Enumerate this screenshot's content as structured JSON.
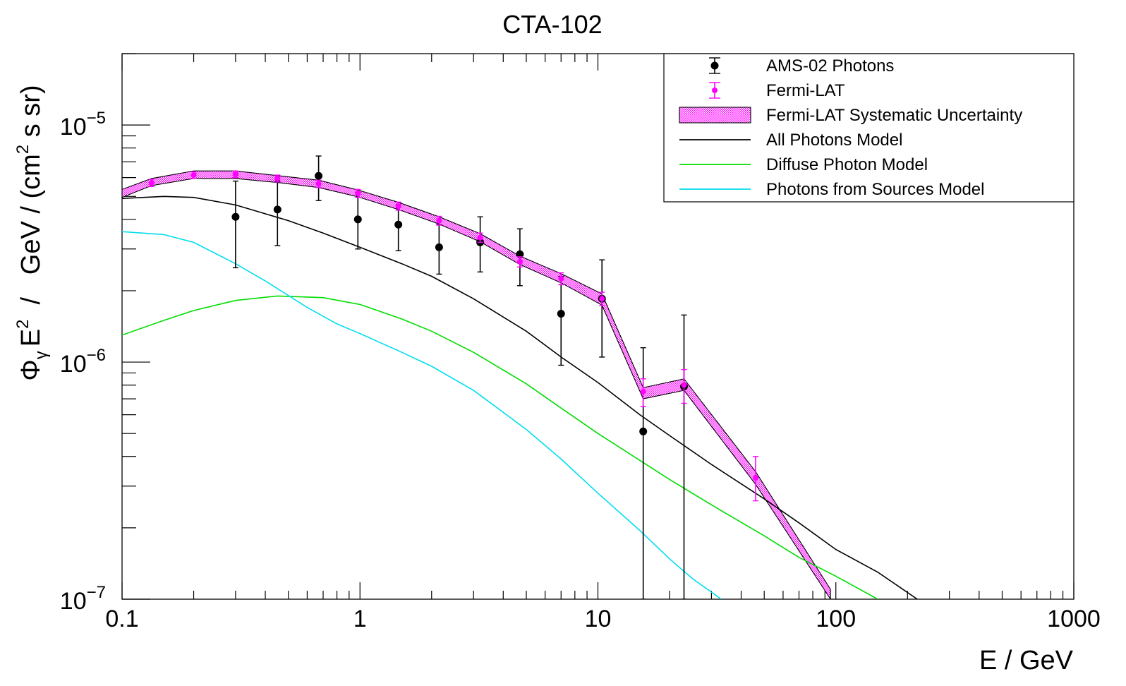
{
  "chart_data": {
    "type": "scatter",
    "title": "CTA-102",
    "xlabel": "E / GeV",
    "ylabel_parts": {
      "phi": "Φ",
      "phi_sub": "γ",
      "e": "E",
      "e_sup": "2",
      "mid": "  /   GeV / (cm",
      "mid_sup": "2",
      "end": " s sr)"
    },
    "x_scale": "log",
    "y_scale": "log",
    "xlim": [
      0.1,
      1000
    ],
    "ylim": [
      1e-07,
      2e-05
    ],
    "x_ticks": [
      {
        "value": 0.1,
        "label": "0.1"
      },
      {
        "value": 1,
        "label": "1"
      },
      {
        "value": 10,
        "label": "10"
      },
      {
        "value": 100,
        "label": "100"
      },
      {
        "value": 1000,
        "label": "1000"
      }
    ],
    "y_ticks": [
      {
        "value": 1e-07,
        "base": "10",
        "exp": "−7"
      },
      {
        "value": 1e-06,
        "base": "10",
        "exp": "−6"
      },
      {
        "value": 1e-05,
        "base": "10",
        "exp": "−5"
      }
    ],
    "legend_position": "top-right",
    "legend": [
      {
        "label": "AMS-02 Photons",
        "kind": "marker",
        "color": "#000000"
      },
      {
        "label": "Fermi-LAT",
        "kind": "marker",
        "color": "#ff00ff"
      },
      {
        "label": "Fermi-LAT Systematic Uncertainty",
        "kind": "band",
        "color": "#ff00ff"
      },
      {
        "label": "All Photons Model",
        "kind": "line",
        "color": "#000000"
      },
      {
        "label": "Diffuse Photon Model",
        "kind": "line",
        "color": "#00dd00"
      },
      {
        "label": "Photons from Sources Model",
        "kind": "line",
        "color": "#00ddee"
      }
    ],
    "series": [
      {
        "name": "AMS-02 Photons",
        "kind": "errorbar",
        "color": "#000000",
        "points": [
          {
            "x": 0.3,
            "y": 4.1e-06,
            "lo": 2.5e-06,
            "hi": 5.8e-06
          },
          {
            "x": 0.45,
            "y": 4.4e-06,
            "lo": 3.1e-06,
            "hi": 5.8e-06
          },
          {
            "x": 0.67,
            "y": 6.1e-06,
            "lo": 4.8e-06,
            "hi": 7.4e-06
          },
          {
            "x": 0.98,
            "y": 4e-06,
            "lo": 3e-06,
            "hi": 5.2e-06
          },
          {
            "x": 1.45,
            "y": 3.8e-06,
            "lo": 2.95e-06,
            "hi": 4.6e-06
          },
          {
            "x": 2.15,
            "y": 3.05e-06,
            "lo": 2.35e-06,
            "hi": 3.8e-06
          },
          {
            "x": 3.2,
            "y": 3.2e-06,
            "lo": 2.4e-06,
            "hi": 4.1e-06
          },
          {
            "x": 4.7,
            "y": 2.85e-06,
            "lo": 2.1e-06,
            "hi": 3.65e-06
          },
          {
            "x": 7.0,
            "y": 1.6e-06,
            "lo": 9.7e-07,
            "hi": 2.3e-06
          },
          {
            "x": 10.4,
            "y": 1.85e-06,
            "lo": 1.05e-06,
            "hi": 2.7e-06
          },
          {
            "x": 15.5,
            "y": 5.1e-07,
            "lo": 1e-07,
            "hi": 1.15e-06
          },
          {
            "x": 23.0,
            "y": 7.9e-07,
            "lo": 1e-07,
            "hi": 1.58e-06
          }
        ]
      },
      {
        "name": "Fermi-LAT",
        "kind": "errorbar",
        "color": "#ff00ff",
        "points": [
          {
            "x": 0.133,
            "y": 5.7e-06,
            "lo": 5.5e-06,
            "hi": 5.9e-06
          },
          {
            "x": 0.2,
            "y": 6.15e-06,
            "lo": 5.95e-06,
            "hi": 6.35e-06
          },
          {
            "x": 0.3,
            "y": 6.2e-06,
            "lo": 6e-06,
            "hi": 6.4e-06
          },
          {
            "x": 0.45,
            "y": 5.95e-06,
            "lo": 5.75e-06,
            "hi": 6.15e-06
          },
          {
            "x": 0.67,
            "y": 5.65e-06,
            "lo": 5.45e-06,
            "hi": 5.85e-06
          },
          {
            "x": 0.98,
            "y": 5.15e-06,
            "lo": 4.95e-06,
            "hi": 5.35e-06
          },
          {
            "x": 1.45,
            "y": 4.55e-06,
            "lo": 4.37e-06,
            "hi": 4.73e-06
          },
          {
            "x": 2.15,
            "y": 3.95e-06,
            "lo": 3.78e-06,
            "hi": 4.12e-06
          },
          {
            "x": 3.2,
            "y": 3.35e-06,
            "lo": 3.2e-06,
            "hi": 3.5e-06
          },
          {
            "x": 4.7,
            "y": 2.65e-06,
            "lo": 2.52e-06,
            "hi": 2.78e-06
          },
          {
            "x": 7.0,
            "y": 2.25e-06,
            "lo": 2.12e-06,
            "hi": 2.38e-06
          },
          {
            "x": 10.4,
            "y": 1.85e-06,
            "lo": 1.73e-06,
            "hi": 1.97e-06
          },
          {
            "x": 15.5,
            "y": 7.5e-07,
            "lo": 6.5e-07,
            "hi": 8.5e-07
          },
          {
            "x": 23.0,
            "y": 8e-07,
            "lo": 6.7e-07,
            "hi": 9.3e-07
          },
          {
            "x": 46.0,
            "y": 3.25e-07,
            "lo": 2.6e-07,
            "hi": 4e-07
          }
        ]
      },
      {
        "name": "Fermi-LAT Systematic Uncertainty",
        "kind": "band",
        "color": "#ff00ff",
        "x": [
          0.1,
          0.133,
          0.2,
          0.3,
          0.45,
          0.67,
          0.98,
          1.45,
          2.15,
          3.2,
          4.7,
          7.0,
          10.4,
          15.5,
          23.0,
          46.0,
          95.0
        ],
        "lower": [
          4.95e-06,
          5.55e-06,
          5.95e-06,
          5.95e-06,
          5.72e-06,
          5.45e-06,
          4.98e-06,
          4.4e-06,
          3.82e-06,
          3.22e-06,
          2.58e-06,
          2.16e-06,
          1.74e-06,
          7e-07,
          7.6e-07,
          3.05e-07,
          1e-07
        ],
        "upper": [
          5.35e-06,
          5.95e-06,
          6.4e-06,
          6.4e-06,
          6.12e-06,
          5.85e-06,
          5.32e-06,
          4.72e-06,
          4.1e-06,
          3.48e-06,
          2.8e-06,
          2.36e-06,
          1.94e-06,
          7.8e-07,
          8.5e-07,
          3.45e-07,
          1.1e-07
        ]
      },
      {
        "name": "All Photons Model",
        "kind": "line",
        "color": "#000000",
        "x": [
          0.1,
          0.15,
          0.2,
          0.3,
          0.5,
          0.7,
          1.0,
          1.5,
          2.0,
          3.0,
          5.0,
          7.0,
          10.0,
          15.0,
          20.0,
          30.0,
          50.0,
          70.0,
          100.0,
          150.0,
          220.0
        ],
        "y": [
          4.9e-06,
          5e-06,
          4.95e-06,
          4.6e-06,
          3.95e-06,
          3.5e-06,
          3.05e-06,
          2.6e-06,
          2.3e-06,
          1.85e-06,
          1.35e-06,
          1.05e-06,
          8.2e-07,
          6e-07,
          4.9e-07,
          3.7e-07,
          2.65e-07,
          2.1e-07,
          1.62e-07,
          1.3e-07,
          1e-07
        ]
      },
      {
        "name": "Diffuse Photon Model",
        "kind": "line",
        "color": "#00dd00",
        "x": [
          0.1,
          0.15,
          0.2,
          0.3,
          0.45,
          0.7,
          1.0,
          1.5,
          2.0,
          3.0,
          5.0,
          7.0,
          10.0,
          15.0,
          20.0,
          30.0,
          50.0,
          70.0,
          100.0,
          150.0
        ],
        "y": [
          1.3e-06,
          1.5e-06,
          1.65e-06,
          1.82e-06,
          1.9e-06,
          1.87e-06,
          1.75e-06,
          1.52e-06,
          1.35e-06,
          1.1e-06,
          8.1e-07,
          6.4e-07,
          5e-07,
          3.85e-07,
          3.2e-07,
          2.5e-07,
          1.85e-07,
          1.5e-07,
          1.25e-07,
          1e-07
        ]
      },
      {
        "name": "Photons from Sources Model",
        "kind": "line",
        "color": "#00ddee",
        "x": [
          0.1,
          0.15,
          0.2,
          0.3,
          0.4,
          0.6,
          0.8,
          1.0,
          1.5,
          2.0,
          3.0,
          5.0,
          7.0,
          10.0,
          15.0,
          20.0,
          25.0,
          33.0
        ],
        "y": [
          3.55e-06,
          3.45e-06,
          3.2e-06,
          2.6e-06,
          2.2e-06,
          1.7e-06,
          1.45e-06,
          1.32e-06,
          1.1e-06,
          9.6e-07,
          7.6e-07,
          5.2e-07,
          3.9e-07,
          2.8e-07,
          1.95e-07,
          1.48e-07,
          1.22e-07,
          1e-07
        ]
      }
    ]
  }
}
